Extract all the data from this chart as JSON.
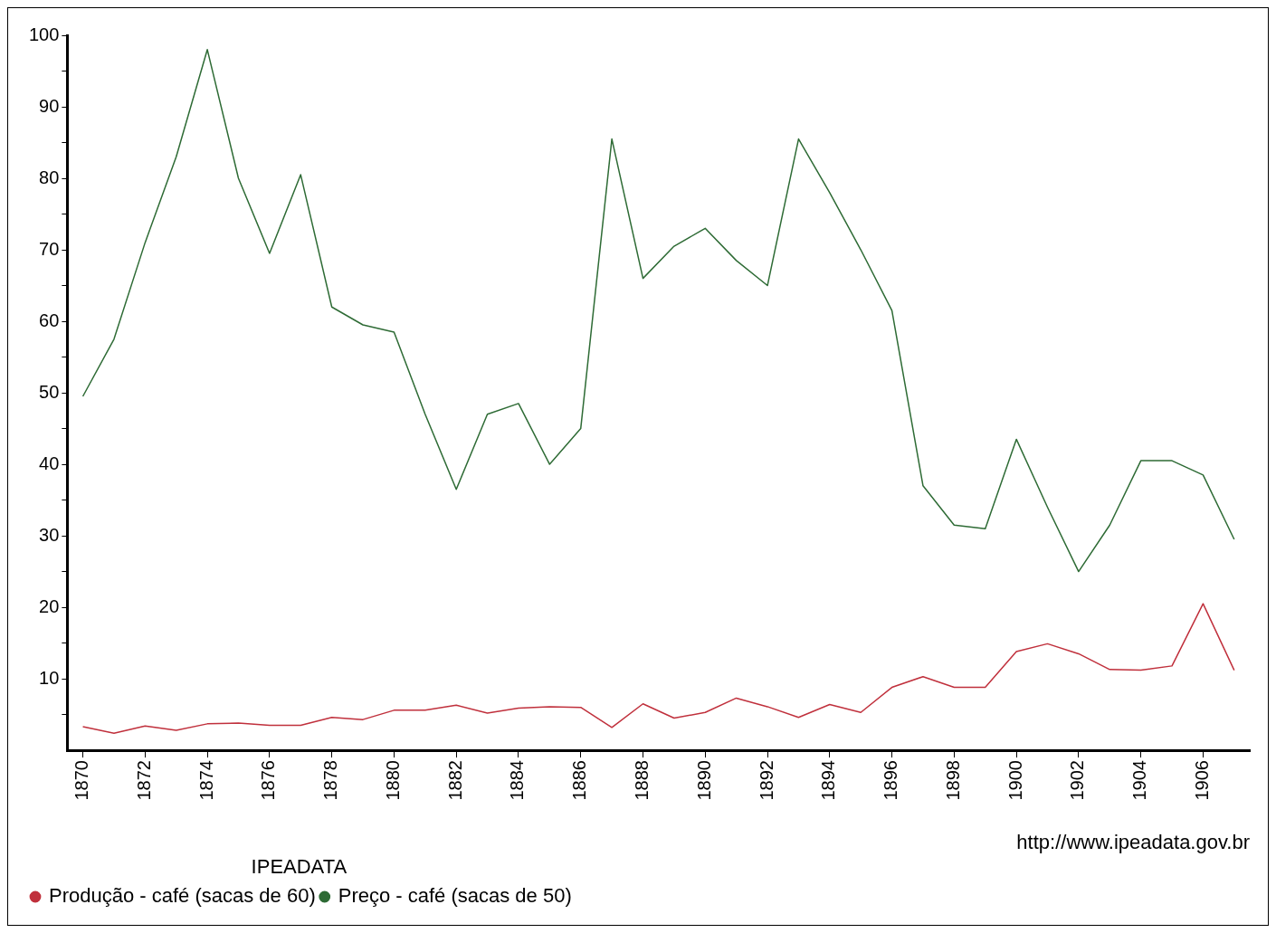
{
  "chart_data": {
    "type": "line",
    "categories": [
      "1870",
      null,
      "1872",
      null,
      "1874",
      null,
      "1876",
      null,
      "1878",
      null,
      "1880",
      null,
      "1882",
      null,
      "1884",
      null,
      "1886",
      null,
      "1888",
      null,
      "1890",
      null,
      "1892",
      null,
      "1894",
      null,
      "1896",
      null,
      "1898",
      null,
      "1900",
      null,
      "1902",
      null,
      "1904",
      null,
      "1906",
      null
    ],
    "series": [
      {
        "name": "Produção - café (sacas de 60)",
        "color": "#c0303c",
        "values": [
          3.3,
          2.4,
          3.4,
          2.8,
          3.7,
          3.8,
          3.5,
          3.5,
          4.6,
          4.3,
          5.6,
          5.6,
          6.3,
          5.2,
          5.9,
          6.1,
          6.0,
          3.2,
          6.5,
          4.5,
          5.3,
          7.3,
          6.1,
          4.6,
          6.4,
          5.3,
          8.8,
          10.3,
          8.8,
          8.8,
          13.8,
          14.9,
          13.5,
          11.3,
          11.2,
          11.8,
          20.5,
          11.2
        ]
      },
      {
        "name": "Preço - café (sacas de 50)",
        "color": "#2e6b35",
        "values": [
          49.5,
          57.5,
          71,
          83,
          98,
          80,
          69.5,
          80.5,
          62,
          59.5,
          58.5,
          47,
          36.5,
          47,
          48.5,
          40,
          45,
          85.5,
          66,
          70.5,
          73,
          68.5,
          65,
          85.5,
          78,
          70,
          61.5,
          37,
          31.5,
          31,
          43.5,
          34,
          25,
          31.5,
          40.5,
          40.5,
          38.5,
          29.5
        ]
      }
    ],
    "ylim": [
      0,
      100
    ],
    "yticks": [
      {
        "value": 5,
        "label": null
      },
      10,
      {
        "value": 15,
        "label": null
      },
      20,
      {
        "value": 25,
        "label": null
      },
      30,
      {
        "value": 35,
        "label": null
      },
      40,
      {
        "value": 45,
        "label": null
      },
      50,
      {
        "value": 55,
        "label": null
      },
      60,
      {
        "value": 65,
        "label": null
      },
      70,
      {
        "value": 75,
        "label": null
      },
      80,
      {
        "value": 85,
        "label": null
      },
      90,
      {
        "value": 95,
        "label": null
      },
      100
    ],
    "grid": false,
    "legend": "bottom left",
    "legend_title": "IPEADATA",
    "annotations": [
      "http://www.ipeadata.gov.br"
    ]
  }
}
